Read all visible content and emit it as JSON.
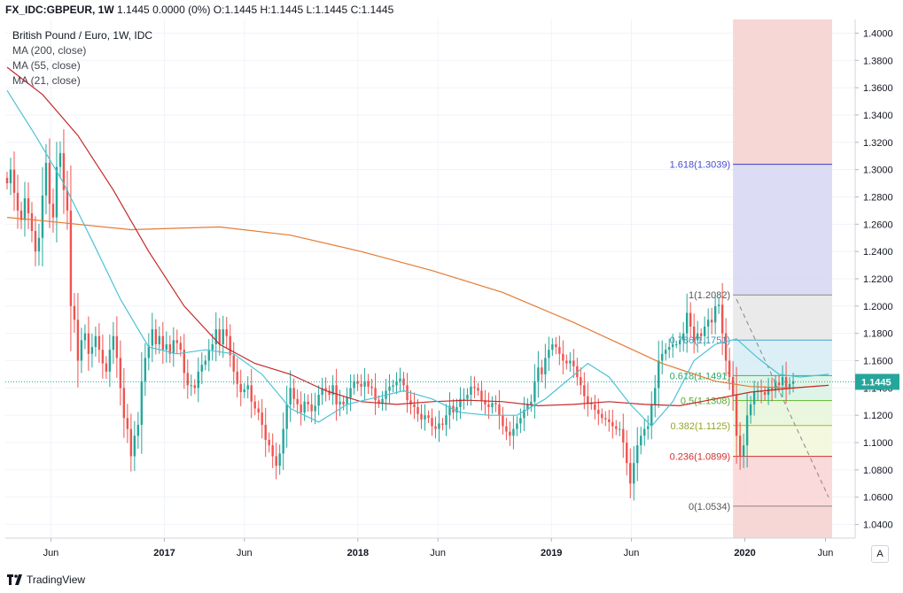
{
  "header": {
    "symbol": "FX_IDC:GBPEUR, 1W",
    "ohlc_text": "1.1445  0.0000 (0%)  O:1.1445  H:1.1445  L:1.1445  C:1.1445"
  },
  "legend": {
    "title": "British Pound / Euro, 1W, IDC",
    "ma200": "MA (200, close)",
    "ma55": "MA (55, close)",
    "ma21": "MA (21, close)"
  },
  "branding": {
    "label": "TradingView"
  },
  "auto_button": {
    "label": "A"
  },
  "colors": {
    "up": "#26a69a",
    "down": "#ef5350",
    "ma200": "#e57a33",
    "ma55": "#c62828",
    "ma21": "#4dc3d4",
    "price_badge": "#26a69a"
  },
  "chart_data": {
    "type": "candlestick",
    "y_axis": {
      "min": 1.03,
      "max": 1.41,
      "ticks": [
        "1.4000",
        "1.3800",
        "1.3600",
        "1.3400",
        "1.3200",
        "1.3000",
        "1.2800",
        "1.2600",
        "1.2400",
        "1.2200",
        "1.2000",
        "1.1800",
        "1.1600",
        "1.1400",
        "1.1200",
        "1.1000",
        "1.0800",
        "1.0600",
        "1.0400"
      ],
      "tick_values": [
        1.4,
        1.38,
        1.36,
        1.34,
        1.32,
        1.3,
        1.28,
        1.26,
        1.24,
        1.22,
        1.2,
        1.18,
        1.16,
        1.14,
        1.12,
        1.1,
        1.08,
        1.06,
        1.04
      ]
    },
    "x_axis": {
      "range": [
        "2016-03-07",
        "2020-07-27"
      ],
      "tick_labels": [
        "Jun",
        "2017",
        "Jun",
        "2018",
        "Jun",
        "2019",
        "Jun",
        "2020",
        "Jun"
      ],
      "tick_dates": [
        "2016-06-01",
        "2017-01-01",
        "2017-06-01",
        "2018-01-01",
        "2018-06-01",
        "2019-01-01",
        "2019-06-01",
        "2020-01-01",
        "2020-06-01"
      ]
    },
    "last_price": {
      "label": "1.1445",
      "value": 1.1445
    },
    "weekly_close": [
      1.29,
      1.3,
      1.283,
      1.27,
      1.263,
      1.279,
      1.268,
      1.255,
      1.24,
      1.25,
      1.281,
      1.305,
      1.275,
      1.265,
      1.302,
      1.312,
      1.285,
      1.27,
      1.2,
      1.19,
      1.16,
      1.175,
      1.18,
      1.165,
      1.17,
      1.178,
      1.168,
      1.158,
      1.152,
      1.168,
      1.178,
      1.162,
      1.14,
      1.118,
      1.11,
      1.09,
      1.105,
      1.113,
      1.145,
      1.162,
      1.171,
      1.183,
      1.172,
      1.178,
      1.168,
      1.172,
      1.165,
      1.175,
      1.173,
      1.168,
      1.151,
      1.142,
      1.142,
      1.14,
      1.152,
      1.157,
      1.16,
      1.168,
      1.172,
      1.183,
      1.172,
      1.183,
      1.178,
      1.164,
      1.152,
      1.143,
      1.137,
      1.139,
      1.142,
      1.13,
      1.125,
      1.122,
      1.113,
      1.102,
      1.098,
      1.09,
      1.083,
      1.092,
      1.11,
      1.128,
      1.14,
      1.132,
      1.128,
      1.122,
      1.13,
      1.128,
      1.123,
      1.127,
      1.135,
      1.14,
      1.138,
      1.135,
      1.142,
      1.128,
      1.13,
      1.128,
      1.133,
      1.14,
      1.145,
      1.143,
      1.141,
      1.145,
      1.141,
      1.14,
      1.131,
      1.129,
      1.132,
      1.138,
      1.141,
      1.142,
      1.145,
      1.147,
      1.142,
      1.131,
      1.128,
      1.126,
      1.121,
      1.117,
      1.12,
      1.118,
      1.112,
      1.11,
      1.114,
      1.113,
      1.12,
      1.127,
      1.122,
      1.126,
      1.132,
      1.132,
      1.135,
      1.141,
      1.14,
      1.138,
      1.131,
      1.128,
      1.126,
      1.129,
      1.128,
      1.12,
      1.112,
      1.108,
      1.105,
      1.11,
      1.114,
      1.118,
      1.124,
      1.128,
      1.13,
      1.145,
      1.155,
      1.15,
      1.162,
      1.168,
      1.172,
      1.17,
      1.165,
      1.16,
      1.158,
      1.16,
      1.156,
      1.148,
      1.142,
      1.134,
      1.129,
      1.128,
      1.124,
      1.121,
      1.118,
      1.117,
      1.115,
      1.112,
      1.11,
      1.11,
      1.1,
      1.085,
      1.07,
      1.085,
      1.098,
      1.105,
      1.11,
      1.112,
      1.128,
      1.14,
      1.16,
      1.165,
      1.168,
      1.17,
      1.172,
      1.172,
      1.175,
      1.18,
      1.195,
      1.185,
      1.175,
      1.18,
      1.178,
      1.185,
      1.19,
      1.188,
      1.2,
      1.201,
      1.18,
      1.16,
      1.148,
      1.135,
      1.105,
      1.09,
      1.098,
      1.12,
      1.128,
      1.137,
      1.138,
      1.137,
      1.135,
      1.14,
      1.138,
      1.144,
      1.142,
      1.148,
      1.14,
      1.143,
      1.145
    ],
    "moving_averages": [
      {
        "name": "MA (200, close)",
        "color": "#e57a33",
        "points": [
          [
            0,
            1.265
          ],
          [
            12,
            1.262
          ],
          [
            35,
            1.256
          ],
          [
            60,
            1.258
          ],
          [
            80,
            1.252
          ],
          [
            100,
            1.24
          ],
          [
            120,
            1.226
          ],
          [
            140,
            1.21
          ],
          [
            160,
            1.188
          ],
          [
            175,
            1.17
          ],
          [
            185,
            1.158
          ],
          [
            200,
            1.145
          ],
          [
            210,
            1.141
          ],
          [
            222,
            1.14
          ],
          [
            232,
            1.142
          ]
        ]
      },
      {
        "name": "MA (55, close)",
        "color": "#c62828",
        "points": [
          [
            0,
            1.375
          ],
          [
            10,
            1.355
          ],
          [
            20,
            1.325
          ],
          [
            30,
            1.285
          ],
          [
            40,
            1.24
          ],
          [
            50,
            1.2
          ],
          [
            60,
            1.172
          ],
          [
            70,
            1.158
          ],
          [
            80,
            1.15
          ],
          [
            90,
            1.138
          ],
          [
            100,
            1.13
          ],
          [
            110,
            1.128
          ],
          [
            120,
            1.13
          ],
          [
            130,
            1.131
          ],
          [
            140,
            1.13
          ],
          [
            150,
            1.127
          ],
          [
            160,
            1.128
          ],
          [
            170,
            1.13
          ],
          [
            180,
            1.128
          ],
          [
            190,
            1.127
          ],
          [
            200,
            1.132
          ],
          [
            210,
            1.137
          ],
          [
            222,
            1.14
          ],
          [
            232,
            1.142
          ]
        ]
      },
      {
        "name": "MA (21, close)",
        "color": "#4dc3d4",
        "points": [
          [
            0,
            1.358
          ],
          [
            8,
            1.325
          ],
          [
            16,
            1.29
          ],
          [
            24,
            1.248
          ],
          [
            32,
            1.205
          ],
          [
            40,
            1.17
          ],
          [
            48,
            1.165
          ],
          [
            56,
            1.168
          ],
          [
            64,
            1.165
          ],
          [
            72,
            1.15
          ],
          [
            80,
            1.125
          ],
          [
            88,
            1.115
          ],
          [
            96,
            1.128
          ],
          [
            104,
            1.133
          ],
          [
            112,
            1.138
          ],
          [
            120,
            1.132
          ],
          [
            128,
            1.122
          ],
          [
            136,
            1.12
          ],
          [
            144,
            1.12
          ],
          [
            152,
            1.132
          ],
          [
            158,
            1.145
          ],
          [
            164,
            1.158
          ],
          [
            170,
            1.148
          ],
          [
            176,
            1.128
          ],
          [
            182,
            1.112
          ],
          [
            188,
            1.13
          ],
          [
            194,
            1.16
          ],
          [
            200,
            1.172
          ],
          [
            206,
            1.176
          ],
          [
            212,
            1.162
          ],
          [
            218,
            1.15
          ],
          [
            224,
            1.148
          ],
          [
            232,
            1.15
          ]
        ]
      }
    ],
    "fibonacci": {
      "start_week": 206,
      "end_week": 232,
      "levels": [
        {
          "ratio": "1.618",
          "label": "1.618(1.3039)",
          "price": 1.3039,
          "fill": "#d6d7f2",
          "line": "#3d3dc8",
          "text": "#4a4ad0"
        },
        {
          "ratio": "1",
          "label": "1(1.2082)",
          "price": 1.2082,
          "fill": "#e6e6e6",
          "line": "#888888",
          "text": "#555555"
        },
        {
          "ratio": "0.786",
          "label": "0.786(1.1751)",
          "price": 1.1751,
          "fill": "#d6ecf5",
          "line": "#4aa3c9",
          "text": "#3a93b9"
        },
        {
          "ratio": "0.618",
          "label": "0.618(1.1491)",
          "price": 1.1491,
          "fill": "#d9f2e4",
          "line": "#2eb873",
          "text": "#27a865"
        },
        {
          "ratio": "0.5",
          "label": "0.5(1.1308)",
          "price": 1.1308,
          "fill": "#e7f5d9",
          "line": "#6bbf3a",
          "text": "#5aa830"
        },
        {
          "ratio": "0.382",
          "label": "0.382(1.1125)",
          "price": 1.1125,
          "fill": "#f1f7d9",
          "line": "#a7b52e",
          "text": "#96a42a"
        },
        {
          "ratio": "0.236",
          "label": "0.236(1.0899)",
          "price": 1.0899,
          "fill": "#f9d3d3",
          "line": "#d32f2f",
          "text": "#d32f2f"
        },
        {
          "ratio": "0",
          "label": "0(1.0534)",
          "price": 1.0534,
          "fill": null,
          "line": "#888888",
          "text": "#555555"
        }
      ],
      "upper_extension_fill": "#f7d6d6",
      "lower_extension_fill": "#f7d6d6",
      "trend_line": {
        "from_week": 206,
        "from_price": 1.205,
        "to_week": 232,
        "to_price": 1.06
      }
    }
  }
}
